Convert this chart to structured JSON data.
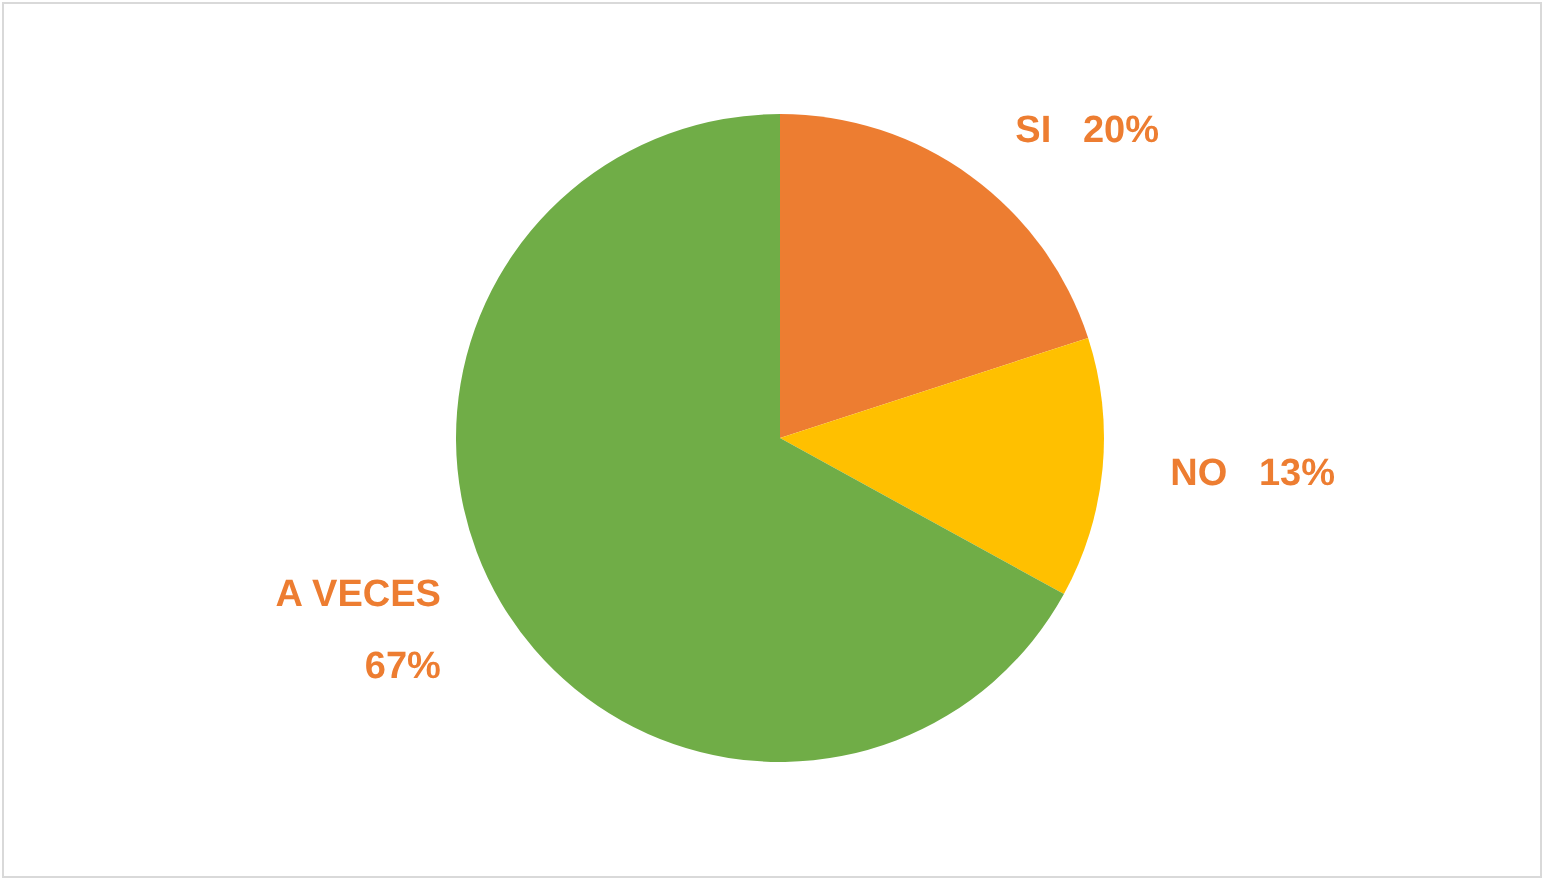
{
  "chart_data": {
    "type": "pie",
    "categories": [
      "SI",
      "NO",
      "A VECES"
    ],
    "values": [
      20,
      13,
      67
    ],
    "value_labels": [
      "20%",
      "13%",
      "67%"
    ],
    "colors": [
      "#ed7d31",
      "#ffc000",
      "#70ad47"
    ],
    "legend": false
  }
}
